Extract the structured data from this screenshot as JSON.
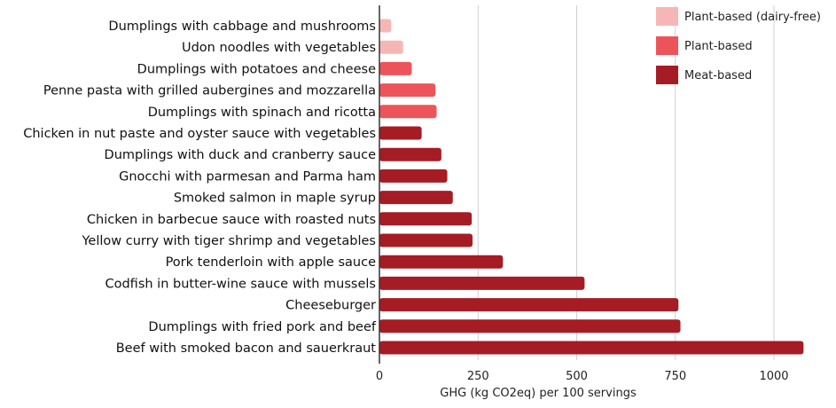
{
  "chart_data": {
    "type": "bar",
    "orientation": "horizontal",
    "xlabel": "GHG (kg CO2eq) per 100 servings",
    "ylabel": "",
    "xlim": [
      0,
      1110
    ],
    "xticks": [
      0,
      250,
      500,
      750,
      1000
    ],
    "grid": true,
    "legend_position": "top-right",
    "series": [
      {
        "name": "Plant-based (dairy-free)",
        "color": "#f7b6b6"
      },
      {
        "name": "Plant-based",
        "color": "#ed5459"
      },
      {
        "name": "Meat-based",
        "color": "#a61c24"
      }
    ],
    "categories": [
      "Dumplings with cabbage and mushrooms",
      "Udon noodles with vegetables",
      "Dumplings with potatoes and cheese",
      "Penne pasta with grilled aubergines and mozzarella",
      "Dumplings with spinach and ricotta",
      "Chicken in nut paste and oyster sauce with vegetables",
      "Dumplings with duck and cranberry sauce",
      "Gnocchi with parmesan and Parma ham",
      "Smoked salmon in maple syrup",
      "Chicken in barbecue sauce with roasted nuts",
      "Yellow curry with tiger shrimp and vegetables",
      "Pork tenderloin with apple sauce",
      "Codfish in butter-wine sauce with mussels",
      "Cheeseburger",
      "Dumplings with fried pork and beef",
      "Beef with smoked bacon and sauerkraut"
    ],
    "values": [
      30,
      60,
      82,
      142,
      145,
      107,
      157,
      172,
      186,
      234,
      236,
      313,
      520,
      758,
      763,
      1075
    ],
    "value_series": [
      0,
      0,
      1,
      1,
      1,
      2,
      2,
      2,
      2,
      2,
      2,
      2,
      2,
      2,
      2,
      2
    ]
  }
}
